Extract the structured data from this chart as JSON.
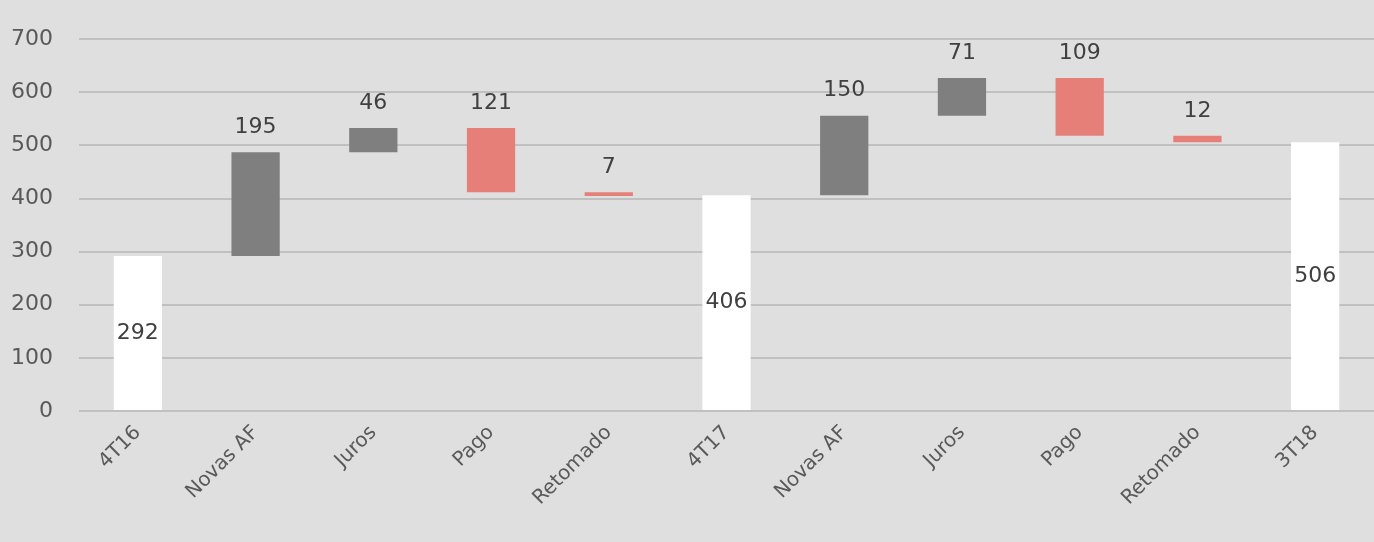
{
  "chart_data": {
    "type": "bar",
    "categories": [
      "4T16",
      "Novas AF",
      "Juros",
      "Pago",
      "Retomado",
      "4T17",
      "Novas AF",
      "Juros",
      "Pago",
      "Retomado",
      "3T18"
    ],
    "values": [
      292,
      195,
      46,
      121,
      7,
      406,
      150,
      71,
      109,
      12,
      506
    ],
    "base": [
      0,
      292,
      487,
      412,
      405,
      0,
      406,
      556,
      518,
      506,
      0
    ],
    "colors": [
      "#ffffff",
      "#7f7f7f",
      "#7f7f7f",
      "#e57f78",
      "#e57f78",
      "#ffffff",
      "#7f7f7f",
      "#7f7f7f",
      "#e57f78",
      "#e57f78",
      "#ffffff"
    ],
    "ylim": [
      0,
      700
    ],
    "yticks": [
      0,
      100,
      200,
      300,
      400,
      500,
      600,
      700
    ],
    "grid": "y",
    "data_labels": true
  }
}
